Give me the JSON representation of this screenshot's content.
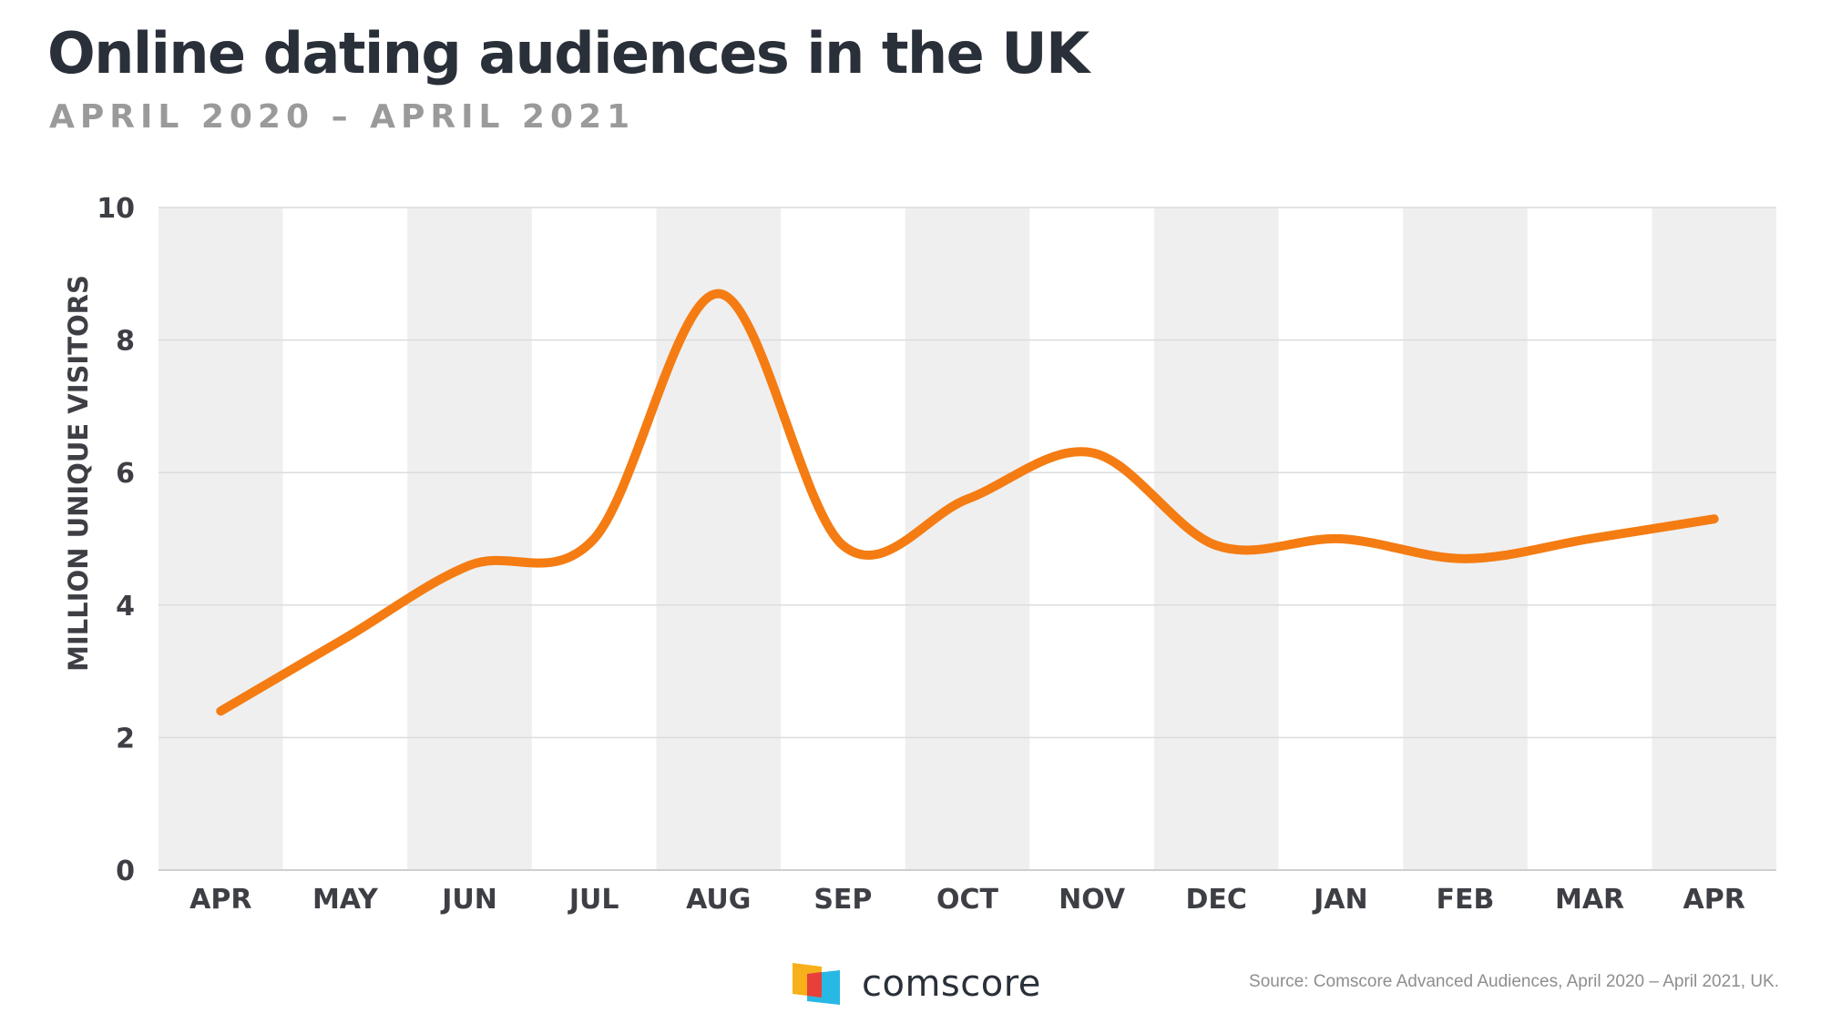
{
  "title": "Online dating audiences in the UK",
  "subtitle": "APRIL 2020 – APRIL 2021",
  "source": "Source: Comscore Advanced Audiences, April 2020 – April 2021, UK.",
  "logo": {
    "text": "comscore",
    "icon": "comscore-logo-icon"
  },
  "colors": {
    "line": "#f47c12",
    "band": "#efefef",
    "grid": "#dcdcdc",
    "title": "#2a3039",
    "subtitle": "#9a9a9a"
  },
  "chart_data": {
    "type": "line",
    "title": "Online dating audiences in the UK",
    "subtitle": "APRIL 2020 – APRIL 2021",
    "ylabel": "MILLION UNIQUE VISITORS",
    "xlabel": "",
    "categories": [
      "APR",
      "MAY",
      "JUN",
      "JUL",
      "AUG",
      "SEP",
      "OCT",
      "NOV",
      "DEC",
      "JAN",
      "FEB",
      "MAR",
      "APR"
    ],
    "series": [
      {
        "values": [
          2.4,
          3.5,
          4.6,
          5.0,
          8.7,
          4.9,
          5.6,
          6.3,
          4.9,
          5.0,
          4.7,
          5.0,
          5.3
        ]
      }
    ],
    "ylim": [
      0,
      10
    ],
    "yticks": [
      0,
      2,
      4,
      6,
      8,
      10
    ],
    "grid": true,
    "alternating_bands": true,
    "legend": "none"
  }
}
